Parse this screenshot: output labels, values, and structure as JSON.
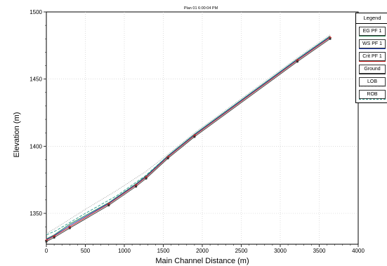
{
  "chart_data": {
    "type": "line",
    "title": "Plan 01    6:00:04 PM",
    "xlabel": "Main Channel Distance (m)",
    "ylabel": "Elevation (m)",
    "xlim": [
      0,
      4000
    ],
    "ylim": [
      1327,
      1500
    ],
    "xticks": [
      0,
      500,
      1000,
      1500,
      2000,
      2500,
      3000,
      3500,
      4000
    ],
    "yticks": [
      1350,
      1400,
      1450,
      1500
    ],
    "grid": true,
    "legend": {
      "title": "Legend",
      "placement": "right"
    },
    "series": [
      {
        "name": "EG PF 1",
        "color": "#2e8b57",
        "style": "solid",
        "x": [
          0,
          100,
          300,
          800,
          1150,
          1280,
          1560,
          1900,
          3220,
          3640
        ],
        "y": [
          1331,
          1334,
          1342,
          1358,
          1372,
          1378,
          1393,
          1409,
          1465,
          1482
        ]
      },
      {
        "name": "WS PF 1",
        "color": "#1f3fbf",
        "style": "solid",
        "x": [
          0,
          100,
          300,
          800,
          1150,
          1280,
          1560,
          1900,
          3220,
          3640
        ],
        "y": [
          1330.5,
          1333.5,
          1341,
          1357.5,
          1371.5,
          1377.5,
          1392.5,
          1408.5,
          1464.5,
          1481.5
        ]
      },
      {
        "name": "Crit PF 1",
        "color": "#cc2222",
        "style": "solid",
        "marker": "cross",
        "x": [
          0,
          100,
          300,
          800,
          1150,
          1280,
          1560,
          1900,
          3220,
          3640
        ],
        "y": [
          1330,
          1333,
          1340,
          1357,
          1371,
          1377,
          1392,
          1408,
          1464,
          1481
        ]
      },
      {
        "name": "Ground",
        "color": "#333333",
        "style": "solid",
        "marker": "dot",
        "x": [
          0,
          100,
          300,
          800,
          1150,
          1280,
          1560,
          1900,
          3220,
          3640
        ],
        "y": [
          1329,
          1332,
          1339,
          1356,
          1370,
          1376,
          1391,
          1407,
          1463,
          1480
        ]
      },
      {
        "name": "LOB",
        "color": "#9a9a9a",
        "style": "dotted",
        "x": [
          0,
          120,
          500,
          900,
          1270,
          1560,
          1900,
          3220,
          3640
        ],
        "y": [
          1335,
          1339,
          1353,
          1367,
          1381,
          1394,
          1410,
          1466,
          1483
        ]
      },
      {
        "name": "ROB",
        "color": "#2a9a8a",
        "style": "dashed",
        "x": [
          0,
          120,
          500,
          900,
          1270,
          1560,
          1900,
          3220,
          3640
        ],
        "y": [
          1334,
          1337,
          1350,
          1363,
          1378,
          1393,
          1409,
          1465,
          1482
        ]
      }
    ]
  }
}
